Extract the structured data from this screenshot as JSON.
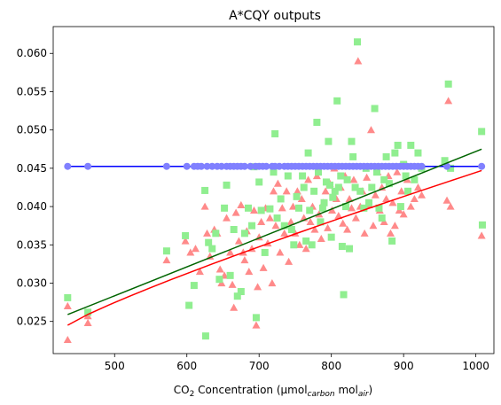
{
  "chart_data": {
    "type": "scatter",
    "title": "A*CQY outputs",
    "xlabel": {
      "prefix": "CO",
      "sub1": "2",
      "middle": " Concentration (µmol",
      "sub2": "carbon",
      "middle2": " mol",
      "sub3": "air",
      "suffix": ")"
    },
    "ylabel": "",
    "xlim": [
      415,
      1025
    ],
    "ylim": [
      0.0208,
      0.0635
    ],
    "xticks": [
      500,
      600,
      700,
      800,
      900,
      1000
    ],
    "yticks": [
      0.025,
      0.03,
      0.035,
      0.04,
      0.045,
      0.05,
      0.055,
      0.06
    ],
    "ytick_labels": [
      "0.025",
      "0.030",
      "0.035",
      "0.040",
      "0.045",
      "0.050",
      "0.055",
      "0.060"
    ],
    "grid": false,
    "series_style": {
      "circles": {
        "color": "#8080ff",
        "marker": "circle"
      },
      "circles_line": {
        "color": "#0000ff"
      },
      "squares": {
        "color": "#90ee90",
        "marker": "square"
      },
      "squares_fit": {
        "color": "#006400"
      },
      "triangles": {
        "color": "#ff8a8a",
        "marker": "triangle"
      },
      "triangles_fit": {
        "color": "#ff0000"
      }
    },
    "circles_line": {
      "x": [
        435,
        1008
      ],
      "y": [
        0.04525,
        0.04525
      ]
    },
    "squares_fit": {
      "x": [
        435,
        1008
      ],
      "y": [
        0.0259,
        0.0475
      ]
    },
    "triangles_fit": {
      "x": [
        435,
        1008
      ],
      "y": [
        0.0245,
        0.0447
      ]
    },
    "circles_x": [
      435,
      463,
      572,
      600,
      610,
      615,
      620,
      628,
      635,
      642,
      648,
      655,
      660,
      665,
      670,
      675,
      680,
      688,
      695,
      700,
      705,
      710,
      718,
      722,
      728,
      735,
      740,
      745,
      750,
      755,
      760,
      765,
      770,
      775,
      780,
      785,
      790,
      795,
      800,
      805,
      810,
      815,
      820,
      825,
      830,
      835,
      840,
      845,
      850,
      855,
      860,
      865,
      870,
      875,
      880,
      885,
      890,
      895,
      900,
      905,
      910,
      915,
      920,
      925,
      960,
      1008
    ],
    "squares": [
      [
        435,
        0.0281
      ],
      [
        463,
        0.0262
      ],
      [
        572,
        0.0342
      ],
      [
        598,
        0.0362
      ],
      [
        603,
        0.0271
      ],
      [
        610,
        0.0297
      ],
      [
        625,
        0.0421
      ],
      [
        626,
        0.0231
      ],
      [
        630,
        0.0353
      ],
      [
        635,
        0.0345
      ],
      [
        640,
        0.0365
      ],
      [
        645,
        0.0305
      ],
      [
        652,
        0.0398
      ],
      [
        655,
        0.0428
      ],
      [
        660,
        0.031
      ],
      [
        665,
        0.037
      ],
      [
        670,
        0.0283
      ],
      [
        675,
        0.0289
      ],
      [
        680,
        0.0365
      ],
      [
        685,
        0.0398
      ],
      [
        690,
        0.0375
      ],
      [
        693,
        0.0452
      ],
      [
        696,
        0.0255
      ],
      [
        700,
        0.0432
      ],
      [
        703,
        0.0395
      ],
      [
        708,
        0.034
      ],
      [
        715,
        0.0397
      ],
      [
        720,
        0.0445
      ],
      [
        722,
        0.0495
      ],
      [
        725,
        0.0385
      ],
      [
        730,
        0.041
      ],
      [
        735,
        0.0375
      ],
      [
        740,
        0.044
      ],
      [
        745,
        0.037
      ],
      [
        748,
        0.035
      ],
      [
        752,
        0.0413
      ],
      [
        755,
        0.0398
      ],
      [
        760,
        0.044
      ],
      [
        762,
        0.0425
      ],
      [
        765,
        0.0355
      ],
      [
        768,
        0.047
      ],
      [
        770,
        0.0395
      ],
      [
        773,
        0.035
      ],
      [
        776,
        0.042
      ],
      [
        780,
        0.051
      ],
      [
        782,
        0.0445
      ],
      [
        785,
        0.038
      ],
      [
        788,
        0.0398
      ],
      [
        790,
        0.0405
      ],
      [
        793,
        0.0432
      ],
      [
        796,
        0.0485
      ],
      [
        798,
        0.0428
      ],
      [
        800,
        0.036
      ],
      [
        802,
        0.0412
      ],
      [
        805,
        0.042
      ],
      [
        808,
        0.0538
      ],
      [
        810,
        0.0425
      ],
      [
        813,
        0.044
      ],
      [
        815,
        0.0348
      ],
      [
        817,
        0.0285
      ],
      [
        820,
        0.04
      ],
      [
        822,
        0.0435
      ],
      [
        825,
        0.0345
      ],
      [
        828,
        0.0485
      ],
      [
        830,
        0.0465
      ],
      [
        833,
        0.0425
      ],
      [
        836,
        0.0615
      ],
      [
        840,
        0.042
      ],
      [
        845,
        0.0398
      ],
      [
        848,
        0.045
      ],
      [
        852,
        0.0405
      ],
      [
        856,
        0.0425
      ],
      [
        860,
        0.0528
      ],
      [
        863,
        0.0445
      ],
      [
        866,
        0.0398
      ],
      [
        870,
        0.0385
      ],
      [
        873,
        0.0435
      ],
      [
        876,
        0.0465
      ],
      [
        880,
        0.043
      ],
      [
        884,
        0.0355
      ],
      [
        888,
        0.047
      ],
      [
        892,
        0.048
      ],
      [
        896,
        0.04
      ],
      [
        900,
        0.0455
      ],
      [
        903,
        0.044
      ],
      [
        906,
        0.042
      ],
      [
        910,
        0.048
      ],
      [
        915,
        0.0435
      ],
      [
        920,
        0.047
      ],
      [
        925,
        0.045
      ],
      [
        957,
        0.046
      ],
      [
        962,
        0.056
      ],
      [
        965,
        0.045
      ],
      [
        1008,
        0.0498
      ],
      [
        1009,
        0.0376
      ]
    ],
    "triangles": [
      [
        435,
        0.027
      ],
      [
        435,
        0.0226
      ],
      [
        463,
        0.0257
      ],
      [
        463,
        0.0248
      ],
      [
        572,
        0.033
      ],
      [
        598,
        0.0355
      ],
      [
        605,
        0.034
      ],
      [
        612,
        0.0345
      ],
      [
        618,
        0.0315
      ],
      [
        625,
        0.04
      ],
      [
        628,
        0.0365
      ],
      [
        632,
        0.0335
      ],
      [
        638,
        0.037
      ],
      [
        642,
        0.0365
      ],
      [
        646,
        0.0318
      ],
      [
        648,
        0.03
      ],
      [
        652,
        0.031
      ],
      [
        655,
        0.0385
      ],
      [
        660,
        0.034
      ],
      [
        663,
        0.0298
      ],
      [
        665,
        0.0268
      ],
      [
        668,
        0.0392
      ],
      [
        672,
        0.0355
      ],
      [
        675,
        0.0402
      ],
      [
        678,
        0.034
      ],
      [
        680,
        0.033
      ],
      [
        683,
        0.0368
      ],
      [
        686,
        0.0315
      ],
      [
        690,
        0.0345
      ],
      [
        693,
        0.0395
      ],
      [
        696,
        0.0245
      ],
      [
        698,
        0.0295
      ],
      [
        700,
        0.036
      ],
      [
        703,
        0.038
      ],
      [
        706,
        0.032
      ],
      [
        709,
        0.0398
      ],
      [
        712,
        0.0352
      ],
      [
        715,
        0.0385
      ],
      [
        718,
        0.03
      ],
      [
        720,
        0.042
      ],
      [
        723,
        0.0375
      ],
      [
        726,
        0.043
      ],
      [
        729,
        0.034
      ],
      [
        732,
        0.0398
      ],
      [
        735,
        0.0365
      ],
      [
        738,
        0.042
      ],
      [
        741,
        0.0328
      ],
      [
        744,
        0.038
      ],
      [
        747,
        0.04
      ],
      [
        750,
        0.0365
      ],
      [
        753,
        0.042
      ],
      [
        756,
        0.035
      ],
      [
        759,
        0.041
      ],
      [
        762,
        0.0385
      ],
      [
        765,
        0.0345
      ],
      [
        768,
        0.0435
      ],
      [
        771,
        0.038
      ],
      [
        774,
        0.04
      ],
      [
        777,
        0.037
      ],
      [
        780,
        0.044
      ],
      [
        783,
        0.039
      ],
      [
        786,
        0.0358
      ],
      [
        789,
        0.0405
      ],
      [
        792,
        0.042
      ],
      [
        795,
        0.0372
      ],
      [
        798,
        0.043
      ],
      [
        801,
        0.0395
      ],
      [
        804,
        0.045
      ],
      [
        807,
        0.041
      ],
      [
        810,
        0.0388
      ],
      [
        813,
        0.0425
      ],
      [
        816,
        0.0378
      ],
      [
        819,
        0.044
      ],
      [
        822,
        0.037
      ],
      [
        825,
        0.041
      ],
      [
        828,
        0.0398
      ],
      [
        831,
        0.0435
      ],
      [
        834,
        0.0385
      ],
      [
        837,
        0.059
      ],
      [
        840,
        0.04
      ],
      [
        843,
        0.042
      ],
      [
        846,
        0.0365
      ],
      [
        849,
        0.0438
      ],
      [
        852,
        0.0402
      ],
      [
        855,
        0.05
      ],
      [
        858,
        0.0375
      ],
      [
        861,
        0.0415
      ],
      [
        864,
        0.0445
      ],
      [
        867,
        0.0395
      ],
      [
        870,
        0.0425
      ],
      [
        873,
        0.038
      ],
      [
        876,
        0.041
      ],
      [
        879,
        0.044
      ],
      [
        882,
        0.0365
      ],
      [
        885,
        0.0405
      ],
      [
        888,
        0.0375
      ],
      [
        891,
        0.0445
      ],
      [
        894,
        0.0395
      ],
      [
        897,
        0.042
      ],
      [
        900,
        0.039
      ],
      [
        905,
        0.0435
      ],
      [
        910,
        0.04
      ],
      [
        915,
        0.041
      ],
      [
        920,
        0.0425
      ],
      [
        925,
        0.0415
      ],
      [
        960,
        0.0408
      ],
      [
        962,
        0.0538
      ],
      [
        965,
        0.04
      ],
      [
        1008,
        0.0362
      ]
    ]
  }
}
